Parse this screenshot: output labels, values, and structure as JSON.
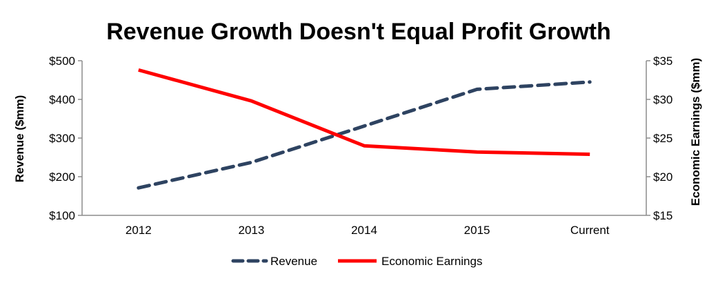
{
  "chart_data": {
    "type": "line",
    "title": "Revenue Growth Doesn't Equal Profit Growth",
    "categories": [
      "2012",
      "2013",
      "2014",
      "2015",
      "Current"
    ],
    "series": [
      {
        "name": "Revenue",
        "axis": "left",
        "values": [
          171,
          237,
          331,
          426,
          445
        ],
        "color": "#2E4361",
        "line_style": "dashed"
      },
      {
        "name": "Economic Earnings",
        "axis": "right",
        "values": [
          33.8,
          29.8,
          24.0,
          23.2,
          22.9
        ],
        "color": "#FF0000",
        "line_style": "solid"
      }
    ],
    "y_left": {
      "label": "Revenue ($mm)",
      "min": 100,
      "max": 500,
      "ticks": [
        100,
        200,
        300,
        400,
        500
      ],
      "tick_labels": [
        "$100",
        "$200",
        "$300",
        "$400",
        "$500"
      ]
    },
    "y_right": {
      "label": "Economic Earnings ($mm)",
      "min": 15,
      "max": 35,
      "ticks": [
        15,
        20,
        25,
        30,
        35
      ],
      "tick_labels": [
        "$15",
        "$20",
        "$25",
        "$30",
        "$35"
      ]
    },
    "grid": false,
    "legend_position": "bottom"
  }
}
